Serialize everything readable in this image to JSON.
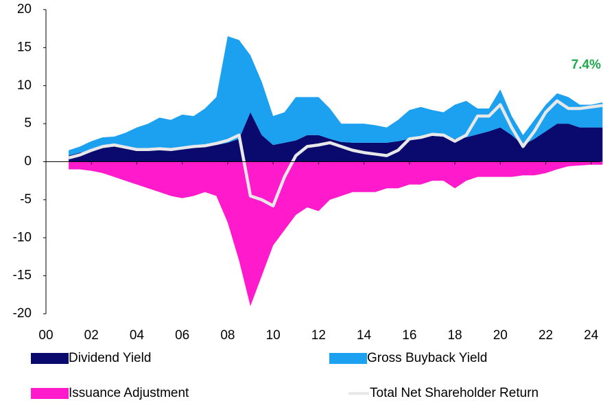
{
  "chart_data": {
    "type": "stacked_area",
    "annotation": "7.4%",
    "x": [
      2001,
      2001.5,
      2002,
      2002.5,
      2003,
      2003.5,
      2004,
      2004.5,
      2005,
      2005.5,
      2006,
      2006.5,
      2007,
      2007.5,
      2008,
      2008.5,
      2009,
      2009.5,
      2010,
      2010.5,
      2011,
      2011.5,
      2012,
      2012.5,
      2013,
      2013.5,
      2014,
      2014.5,
      2015,
      2015.5,
      2016,
      2016.5,
      2017,
      2017.5,
      2018,
      2018.5,
      2019,
      2019.5,
      2020,
      2020.5,
      2021,
      2021.5,
      2022,
      2022.5,
      2023,
      2023.5,
      2024,
      2024.5
    ],
    "xlim": [
      2000,
      2024.4
    ],
    "xticks": [
      {
        "value": 2000,
        "label": "00"
      },
      {
        "value": 2002,
        "label": "02"
      },
      {
        "value": 2004,
        "label": "04"
      },
      {
        "value": 2006,
        "label": "06"
      },
      {
        "value": 2008,
        "label": "08"
      },
      {
        "value": 2010,
        "label": "10"
      },
      {
        "value": 2012,
        "label": "12"
      },
      {
        "value": 2014,
        "label": "14"
      },
      {
        "value": 2016,
        "label": "16"
      },
      {
        "value": 2018,
        "label": "18"
      },
      {
        "value": 2020,
        "label": "20"
      },
      {
        "value": 2022,
        "label": "22"
      },
      {
        "value": 2024,
        "label": "24"
      }
    ],
    "ylim": [
      -20,
      20
    ],
    "yticks": [
      -20,
      -15,
      -10,
      -5,
      0,
      5,
      10,
      15,
      20
    ],
    "series": [
      {
        "name": "Dividend Yield",
        "color": "#0a0a6e",
        "stack": "pos",
        "values": [
          0.8,
          1.2,
          1.5,
          1.8,
          2.0,
          1.8,
          1.7,
          1.6,
          1.7,
          1.8,
          1.9,
          2.0,
          2.1,
          2.2,
          2.5,
          3.0,
          6.5,
          3.5,
          2.2,
          2.5,
          2.8,
          3.5,
          3.5,
          3.0,
          2.6,
          2.5,
          2.5,
          2.5,
          2.5,
          2.7,
          3.0,
          3.2,
          3.4,
          3.3,
          3.0,
          3.2,
          3.6,
          4.0,
          4.5,
          3.5,
          2.2,
          3.0,
          4.0,
          5.0,
          5.0,
          4.5,
          4.5,
          4.5
        ]
      },
      {
        "name": "Gross Buyback Yield",
        "color": "#1ca0f0",
        "stack": "pos",
        "values": [
          0.7,
          0.8,
          1.2,
          1.4,
          1.3,
          2.0,
          2.8,
          3.4,
          4.1,
          3.7,
          4.3,
          4.0,
          4.9,
          6.3,
          14.0,
          13.0,
          7.5,
          7.0,
          3.8,
          4.0,
          5.7,
          5.0,
          5.0,
          4.0,
          2.4,
          2.5,
          2.5,
          2.3,
          2.0,
          2.8,
          3.8,
          4.0,
          3.4,
          3.2,
          4.5,
          4.8,
          3.4,
          3.0,
          5.0,
          2.5,
          1.3,
          2.5,
          3.5,
          4.0,
          3.5,
          3.0,
          3.0,
          3.3
        ]
      },
      {
        "name": "Issuance Adjustment",
        "color": "#ff1acc",
        "stack": "neg",
        "values": [
          -1.0,
          -1.0,
          -1.2,
          -1.5,
          -2.0,
          -2.5,
          -3.0,
          -3.5,
          -4.0,
          -4.5,
          -4.8,
          -4.5,
          -4.0,
          -4.5,
          -8.0,
          -13.0,
          -19.0,
          -15.0,
          -11.0,
          -9.0,
          -7.0,
          -6.0,
          -6.5,
          -5.0,
          -4.5,
          -4.0,
          -4.0,
          -4.0,
          -3.5,
          -3.5,
          -3.0,
          -3.0,
          -2.5,
          -2.5,
          -3.5,
          -2.5,
          -2.0,
          -2.0,
          -2.0,
          -2.0,
          -1.8,
          -1.8,
          -1.5,
          -1.0,
          -0.6,
          -0.5,
          -0.4,
          -0.4
        ]
      },
      {
        "name": "Total Net Shareholder Return",
        "color": "#e8e8e8",
        "stack": "line",
        "values": [
          0.5,
          0.9,
          1.5,
          2.0,
          2.2,
          1.9,
          1.6,
          1.6,
          1.7,
          1.6,
          1.8,
          2.0,
          2.1,
          2.4,
          2.8,
          3.5,
          -4.5,
          -5.0,
          -5.8,
          -2.0,
          0.8,
          2.0,
          2.2,
          2.5,
          2.0,
          1.5,
          1.2,
          1.0,
          0.8,
          1.5,
          3.0,
          3.2,
          3.6,
          3.5,
          2.7,
          3.5,
          6.0,
          6.0,
          7.5,
          4.5,
          2.0,
          4.0,
          6.5,
          8.0,
          7.0,
          7.0,
          7.2,
          7.4
        ]
      }
    ]
  }
}
